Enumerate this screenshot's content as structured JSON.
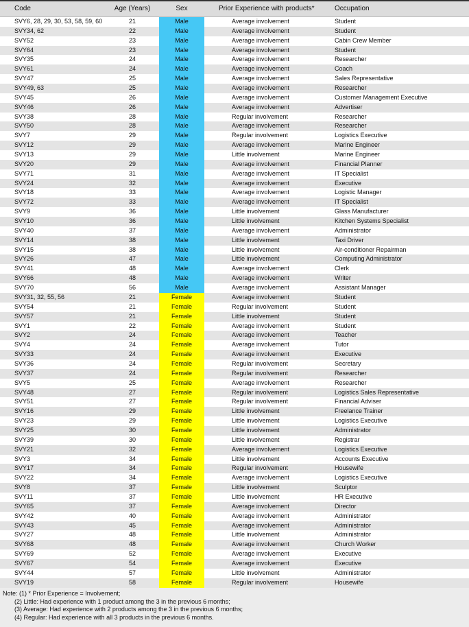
{
  "colors": {
    "male": "#45c8f5",
    "female": "#ffff00"
  },
  "headers": {
    "code": "Code",
    "age": "Age (Years)",
    "sex": "Sex",
    "prior": "Prior Experience with products*",
    "occupation": "Occupation"
  },
  "rows": [
    {
      "code": "SVY6, 28, 29, 30, 53, 58, 59, 60",
      "age": "21",
      "sex": "Male",
      "prior": "Average involvement",
      "occupation": "Student"
    },
    {
      "code": "SVY34, 62",
      "age": "22",
      "sex": "Male",
      "prior": "Average involvement",
      "occupation": "Student"
    },
    {
      "code": "SVY52",
      "age": "23",
      "sex": "Male",
      "prior": "Average involvement",
      "occupation": "Cabin Crew Member"
    },
    {
      "code": "SVY64",
      "age": "23",
      "sex": "Male",
      "prior": "Average involvement",
      "occupation": "Student"
    },
    {
      "code": "SVY35",
      "age": "24",
      "sex": "Male",
      "prior": "Average involvement",
      "occupation": "Researcher"
    },
    {
      "code": "SVY61",
      "age": "24",
      "sex": "Male",
      "prior": "Average involvement",
      "occupation": "Coach"
    },
    {
      "code": "SVY47",
      "age": "25",
      "sex": "Male",
      "prior": "Average involvement",
      "occupation": "Sales Representative"
    },
    {
      "code": "SVY49, 63",
      "age": "25",
      "sex": "Male",
      "prior": "Average involvement",
      "occupation": "Researcher"
    },
    {
      "code": "SVY45",
      "age": "26",
      "sex": "Male",
      "prior": "Average involvement",
      "occupation": "Customer Management Executive"
    },
    {
      "code": "SVY46",
      "age": "26",
      "sex": "Male",
      "prior": "Average involvement",
      "occupation": "Advertiser"
    },
    {
      "code": "SVY38",
      "age": "28",
      "sex": "Male",
      "prior": "Regular involvement",
      "occupation": "Researcher"
    },
    {
      "code": "SVY50",
      "age": "28",
      "sex": "Male",
      "prior": "Average involvement",
      "occupation": "Researcher"
    },
    {
      "code": "SVY7",
      "age": "29",
      "sex": "Male",
      "prior": "Regular involvement",
      "occupation": "Logistics Executive"
    },
    {
      "code": "SVY12",
      "age": "29",
      "sex": "Male",
      "prior": "Average involvement",
      "occupation": "Marine Engineer"
    },
    {
      "code": "SVY13",
      "age": "29",
      "sex": "Male",
      "prior": "Little involvement",
      "occupation": "Marine Engineer"
    },
    {
      "code": "SVY20",
      "age": "29",
      "sex": "Male",
      "prior": "Average involvement",
      "occupation": "Financial Planner"
    },
    {
      "code": "SVY71",
      "age": "31",
      "sex": "Male",
      "prior": "Average involvement",
      "occupation": "IT Specialist"
    },
    {
      "code": "SVY24",
      "age": "32",
      "sex": "Male",
      "prior": "Average involvement",
      "occupation": "Executive"
    },
    {
      "code": "SVY18",
      "age": "33",
      "sex": "Male",
      "prior": "Average involvement",
      "occupation": "Logistic Manager"
    },
    {
      "code": "SVY72",
      "age": "33",
      "sex": "Male",
      "prior": "Average involvement",
      "occupation": "IT Specialist"
    },
    {
      "code": "SVY9",
      "age": "36",
      "sex": "Male",
      "prior": "Little involvement",
      "occupation": "Glass Manufacturer"
    },
    {
      "code": "SVY10",
      "age": "36",
      "sex": "Male",
      "prior": "Little involvement",
      "occupation": "Kitchen Systems Specialist"
    },
    {
      "code": "SVY40",
      "age": "37",
      "sex": "Male",
      "prior": "Average involvement",
      "occupation": "Administrator"
    },
    {
      "code": "SVY14",
      "age": "38",
      "sex": "Male",
      "prior": "Little involvement",
      "occupation": "Taxi Driver"
    },
    {
      "code": "SVY15",
      "age": "38",
      "sex": "Male",
      "prior": "Little involvement",
      "occupation": "Air-conditioner Repairman"
    },
    {
      "code": "SVY26",
      "age": "47",
      "sex": "Male",
      "prior": "Little involvement",
      "occupation": "Computing Administrator"
    },
    {
      "code": "SVY41",
      "age": "48",
      "sex": "Male",
      "prior": "Average involvement",
      "occupation": "Clerk"
    },
    {
      "code": "SVY66",
      "age": "48",
      "sex": "Male",
      "prior": "Average involvement",
      "occupation": "Writer"
    },
    {
      "code": "SVY70",
      "age": "56",
      "sex": "Male",
      "prior": "Average involvement",
      "occupation": "Assistant Manager"
    },
    {
      "code": "SVY31, 32, 55, 56",
      "age": "21",
      "sex": "Female",
      "prior": "Average involvement",
      "occupation": "Student"
    },
    {
      "code": "SVY54",
      "age": "21",
      "sex": "Female",
      "prior": "Regular involvement",
      "occupation": "Student"
    },
    {
      "code": "SVY57",
      "age": "21",
      "sex": "Female",
      "prior": "Little involvement",
      "occupation": "Student"
    },
    {
      "code": "SVY1",
      "age": "22",
      "sex": "Female",
      "prior": "Average involvement",
      "occupation": "Student"
    },
    {
      "code": "SVY2",
      "age": "24",
      "sex": "Female",
      "prior": "Average involvement",
      "occupation": "Teacher"
    },
    {
      "code": "SVY4",
      "age": "24",
      "sex": "Female",
      "prior": "Average involvement",
      "occupation": "Tutor"
    },
    {
      "code": "SVY33",
      "age": "24",
      "sex": "Female",
      "prior": "Average involvement",
      "occupation": "Executive"
    },
    {
      "code": "SVY36",
      "age": "24",
      "sex": "Female",
      "prior": "Regular involvement",
      "occupation": "Secretary"
    },
    {
      "code": "SVY37",
      "age": "24",
      "sex": "Female",
      "prior": "Regular involvement",
      "occupation": "Researcher"
    },
    {
      "code": "SVY5",
      "age": "25",
      "sex": "Female",
      "prior": "Average involvement",
      "occupation": "Researcher"
    },
    {
      "code": "SVY48",
      "age": "27",
      "sex": "Female",
      "prior": "Regular involvement",
      "occupation": "Logistics Sales Representative"
    },
    {
      "code": "SVY51",
      "age": "27",
      "sex": "Female",
      "prior": "Regular involvement",
      "occupation": "Financial Adviser"
    },
    {
      "code": "SVY16",
      "age": "29",
      "sex": "Female",
      "prior": "Little involvement",
      "occupation": "Freelance Trainer"
    },
    {
      "code": "SVY23",
      "age": "29",
      "sex": "Female",
      "prior": "Little involvement",
      "occupation": "Logistics Executive"
    },
    {
      "code": "SVY25",
      "age": "30",
      "sex": "Female",
      "prior": "Little involvement",
      "occupation": "Administrator"
    },
    {
      "code": "SVY39",
      "age": "30",
      "sex": "Female",
      "prior": "Little involvement",
      "occupation": "Registrar"
    },
    {
      "code": "SVY21",
      "age": "32",
      "sex": "Female",
      "prior": "Average involvement",
      "occupation": "Logistics Executive"
    },
    {
      "code": "SVY3",
      "age": "34",
      "sex": "Female",
      "prior": "Little involvement",
      "occupation": "Accounts Executive"
    },
    {
      "code": "SVY17",
      "age": "34",
      "sex": "Female",
      "prior": "Regular involvement",
      "occupation": "Housewife"
    },
    {
      "code": "SVY22",
      "age": "34",
      "sex": "Female",
      "prior": "Average involvement",
      "occupation": "Logistics Executive"
    },
    {
      "code": "SVY8",
      "age": "37",
      "sex": "Female",
      "prior": "Little involvement",
      "occupation": "Sculptor"
    },
    {
      "code": "SVY11",
      "age": "37",
      "sex": "Female",
      "prior": "Little involvement",
      "occupation": "HR Executive"
    },
    {
      "code": "SVY65",
      "age": "37",
      "sex": "Female",
      "prior": "Average involvement",
      "occupation": "Director"
    },
    {
      "code": "SVY42",
      "age": "40",
      "sex": "Female",
      "prior": "Average involvement",
      "occupation": "Administrator"
    },
    {
      "code": "SVY43",
      "age": "45",
      "sex": "Female",
      "prior": "Average involvement",
      "occupation": "Administrator"
    },
    {
      "code": "SVY27",
      "age": "48",
      "sex": "Female",
      "prior": "Little involvement",
      "occupation": "Administrator"
    },
    {
      "code": "SVY68",
      "age": "48",
      "sex": "Female",
      "prior": "Average involvement",
      "occupation": "Church Worker"
    },
    {
      "code": "SVY69",
      "age": "52",
      "sex": "Female",
      "prior": "Average involvement",
      "occupation": "Executive"
    },
    {
      "code": "SVY67",
      "age": "54",
      "sex": "Female",
      "prior": "Average involvement",
      "occupation": "Executive"
    },
    {
      "code": "SVY44",
      "age": "57",
      "sex": "Female",
      "prior": "Little involvement",
      "occupation": "Administrator"
    },
    {
      "code": "SVY19",
      "age": "58",
      "sex": "Female",
      "prior": "Regular involvement",
      "occupation": "Housewife"
    }
  ],
  "notes": [
    "Note: (1) * Prior Experience = Involvement;",
    "(2) Little: Had experience with 1 product among the 3 in the previous 6 months;",
    "(3) Average: Had experience with 2 products among the 3 in the previous 6 months;",
    "(4) Regular: Had experience with all 3 products in the previous 6 months."
  ]
}
